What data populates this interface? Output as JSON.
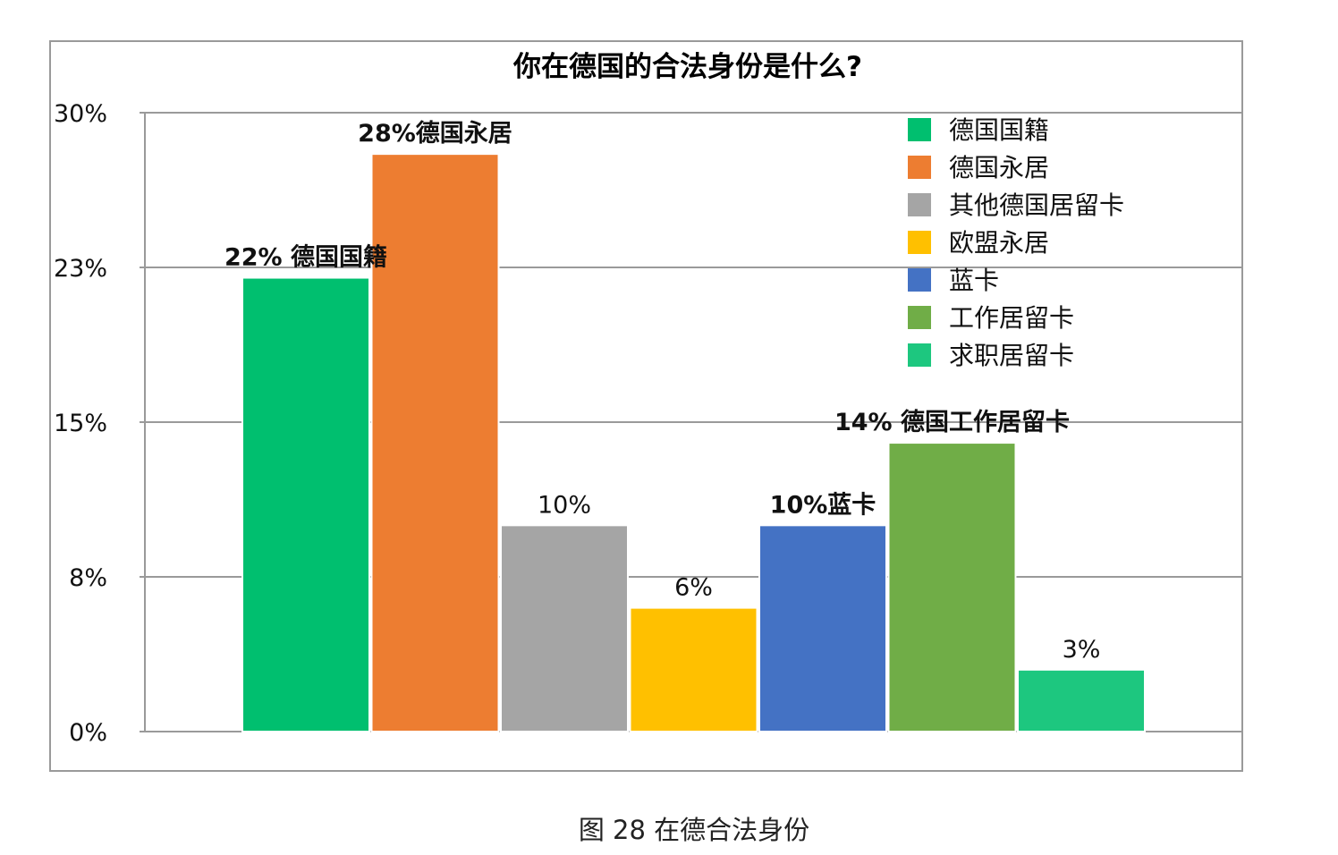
{
  "chart_data": {
    "type": "bar",
    "title": "你在德国的合法身份是什么?",
    "xlabel": "",
    "ylabel": "",
    "ylim": [
      0,
      30
    ],
    "y_ticks": [
      "0%",
      "8%",
      "15%",
      "23%",
      "30%"
    ],
    "grid": true,
    "legend_placement": "top-right",
    "series": [
      {
        "name": "德国国籍",
        "value": 22,
        "label": "22% 德国国籍",
        "label_bold": true,
        "color": "#00BF6F"
      },
      {
        "name": "德国永居",
        "value": 28,
        "label": "28%德国永居",
        "label_bold": true,
        "color": "#ED7D31"
      },
      {
        "name": "其他德国居留卡",
        "value": 10,
        "label": "10%",
        "label_bold": false,
        "color": "#A5A5A5"
      },
      {
        "name": "欧盟永居",
        "value": 6,
        "label": "6%",
        "label_bold": false,
        "color": "#FFC000"
      },
      {
        "name": "蓝卡",
        "value": 10,
        "label": "10%蓝卡",
        "label_bold": true,
        "color": "#4472C4"
      },
      {
        "name": "工作居留卡",
        "value": 14,
        "label": "14% 德国工作居留卡",
        "label_bold": true,
        "color": "#70AD47"
      },
      {
        "name": "求职居留卡",
        "value": 3,
        "label": "3%",
        "label_bold": false,
        "color": "#1DC77F"
      }
    ]
  },
  "caption": "图 28 在德合法身份"
}
